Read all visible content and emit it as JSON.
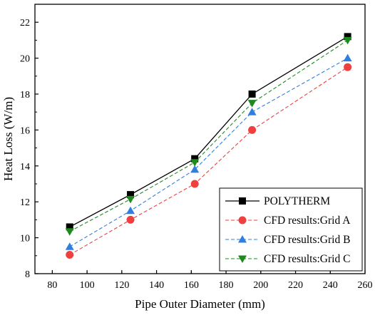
{
  "chart_data": {
    "type": "line",
    "title": "",
    "xlabel": "Pipe Outer Diameter (mm)",
    "ylabel": "Heat Loss (W/m)",
    "xlim": [
      70,
      260
    ],
    "ylim": [
      8,
      23
    ],
    "xticks": [
      80,
      100,
      120,
      140,
      160,
      180,
      200,
      220,
      240,
      260
    ],
    "yticks": [
      8,
      10,
      12,
      14,
      16,
      18,
      20,
      22
    ],
    "grid": false,
    "legend_position": "bottom-right",
    "x": [
      90,
      125,
      162,
      195,
      250
    ],
    "series": [
      {
        "name": "POLYTHERM",
        "values": [
          10.6,
          12.4,
          14.4,
          18.0,
          21.2
        ],
        "color": "#000000",
        "marker": "square",
        "dash": "solid"
      },
      {
        "name": "CFD results:Grid A",
        "values": [
          9.05,
          11.0,
          13.0,
          16.0,
          19.5
        ],
        "color": "#ef4040",
        "marker": "circle",
        "dash": "dashed"
      },
      {
        "name": "CFD results:Grid B",
        "values": [
          9.5,
          11.5,
          13.8,
          17.0,
          20.0
        ],
        "color": "#2f7fe0",
        "marker": "triangle-up",
        "dash": "dashed"
      },
      {
        "name": "CFD results:Grid C",
        "values": [
          10.35,
          12.15,
          14.2,
          17.5,
          21.0
        ],
        "color": "#1e8a1e",
        "marker": "triangle-down",
        "dash": "dashed"
      }
    ]
  }
}
